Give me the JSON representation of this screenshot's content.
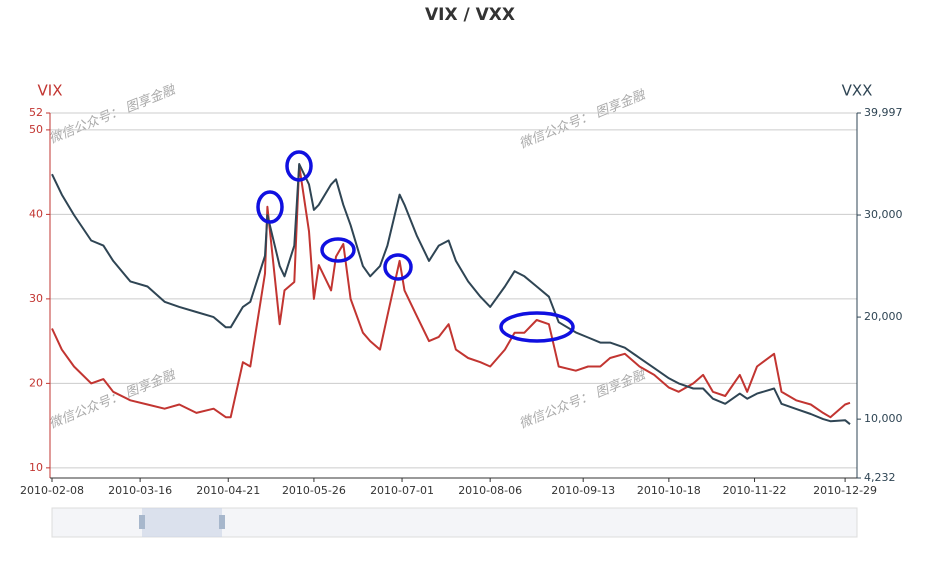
{
  "chart_data": {
    "type": "line",
    "title": "VIX / VXX",
    "watermark": "微信公众号： 图享金融",
    "y_label": "VIX",
    "y2_label": "VXX",
    "x": [
      "2010-02-08",
      "2010-02-12",
      "2010-02-17",
      "2010-02-24",
      "2010-03-01",
      "2010-03-05",
      "2010-03-12",
      "2010-03-19",
      "2010-03-26",
      "2010-04-01",
      "2010-04-08",
      "2010-04-15",
      "2010-04-20",
      "2010-04-22",
      "2010-04-27",
      "2010-04-30",
      "2010-05-06",
      "2010-05-07",
      "2010-05-12",
      "2010-05-14",
      "2010-05-18",
      "2010-05-20",
      "2010-05-24",
      "2010-05-26",
      "2010-05-28",
      "2010-06-02",
      "2010-06-04",
      "2010-06-07",
      "2010-06-10",
      "2010-06-15",
      "2010-06-18",
      "2010-06-22",
      "2010-06-25",
      "2010-06-30",
      "2010-07-02",
      "2010-07-07",
      "2010-07-12",
      "2010-07-16",
      "2010-07-20",
      "2010-07-23",
      "2010-07-28",
      "2010-08-02",
      "2010-08-06",
      "2010-08-12",
      "2010-08-16",
      "2010-08-20",
      "2010-08-25",
      "2010-08-30",
      "2010-09-03",
      "2010-09-10",
      "2010-09-15",
      "2010-09-20",
      "2010-09-24",
      "2010-09-30",
      "2010-10-06",
      "2010-10-12",
      "2010-10-18",
      "2010-10-22",
      "2010-10-28",
      "2010-11-01",
      "2010-11-05",
      "2010-11-10",
      "2010-11-16",
      "2010-11-19",
      "2010-11-23",
      "2010-11-30",
      "2010-12-03",
      "2010-12-09",
      "2010-12-15",
      "2010-12-20",
      "2010-12-23",
      "2010-12-29",
      "2010-12-31"
    ],
    "series": [
      {
        "name": "VIX",
        "color": "#c23531",
        "axis": "y",
        "values": [
          26.5,
          24,
          22,
          20,
          20.5,
          19,
          18,
          17.5,
          17,
          17.5,
          16.5,
          17,
          16,
          16,
          22.5,
          22,
          33,
          40.9,
          27,
          31,
          32,
          45.8,
          38,
          30,
          34,
          31,
          35,
          36.5,
          30,
          26,
          25,
          24,
          28,
          34.5,
          31,
          28,
          25,
          25.5,
          27,
          24,
          23,
          22.5,
          22,
          24,
          26,
          26,
          27.5,
          27,
          22,
          21.5,
          22,
          22,
          23,
          23.5,
          22,
          21,
          19.5,
          19,
          20,
          21,
          19,
          18.5,
          21,
          19,
          22,
          23.5,
          19,
          18,
          17.5,
          16.5,
          16,
          17.5,
          17.7
        ]
      },
      {
        "name": "VXX",
        "color": "#2f4554",
        "axis": "y2",
        "values": [
          34000,
          32000,
          30000,
          27500,
          27000,
          25500,
          23500,
          23000,
          21500,
          21000,
          20500,
          20000,
          19000,
          19000,
          21000,
          21500,
          26000,
          30000,
          25000,
          24000,
          27000,
          35000,
          33000,
          30500,
          31000,
          33000,
          33500,
          31000,
          29000,
          25000,
          24000,
          25000,
          27000,
          32000,
          31000,
          28000,
          25500,
          27000,
          27500,
          25500,
          23500,
          22000,
          21000,
          23000,
          24500,
          24000,
          23000,
          22000,
          19500,
          18500,
          18000,
          17500,
          17500,
          17000,
          16000,
          15000,
          14000,
          13500,
          13000,
          13000,
          12000,
          11500,
          12500,
          12000,
          12500,
          13000,
          11500,
          11000,
          10500,
          10000,
          9800,
          9900,
          9500
        ]
      }
    ],
    "xlim": [
      "2010-02-08",
      "2010-12-31"
    ],
    "xticks": [
      "2010-02-08",
      "2010-03-16",
      "2010-04-21",
      "2010-05-26",
      "2010-07-01",
      "2010-08-06",
      "2010-09-13",
      "2010-10-18",
      "2010-11-22",
      "2010-12-29"
    ],
    "ylim": [
      8.8,
      52
    ],
    "yticks": [
      10,
      20,
      30,
      40,
      50,
      52
    ],
    "y2lim": [
      4232,
      39997
    ],
    "y2ticks": [
      {
        "value": 4232,
        "label": "4,232"
      },
      {
        "value": 10000,
        "label": "10,000"
      },
      {
        "value": 20000,
        "label": "20,000"
      },
      {
        "value": 30000,
        "label": "30,000"
      },
      {
        "value": 39997,
        "label": "39,997"
      }
    ],
    "grid": true
  }
}
